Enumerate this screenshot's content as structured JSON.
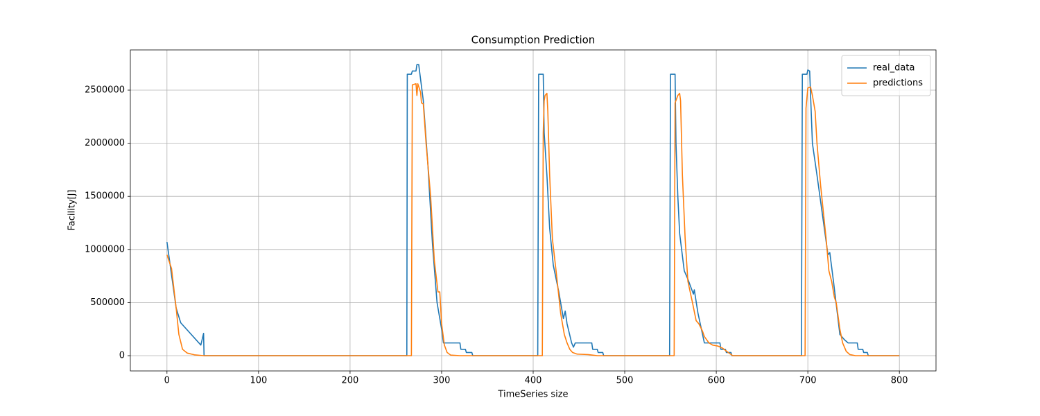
{
  "chart_data": {
    "type": "line",
    "title": "Consumption Prediction",
    "x_label": "TimeSeries size",
    "y_label": "Facility[J]",
    "grid": true,
    "legend": "upper right",
    "xlim": [
      -40,
      840
    ],
    "xticks": [
      0,
      100,
      200,
      300,
      400,
      500,
      600,
      700,
      800
    ],
    "ylim": [
      -143600,
      2878600
    ],
    "yticks": [
      0,
      500000,
      1000000,
      1500000,
      2000000,
      2500000
    ],
    "series": [
      {
        "name": "real_data",
        "color": "#1f77b4",
        "x": [
          0,
          10,
          15,
          37,
          40,
          40.5,
          262,
          262.5,
          267,
          268,
          272,
          273,
          275,
          280,
          285,
          290,
          295,
          300,
          302,
          320,
          321,
          326,
          327,
          333,
          334,
          405,
          406,
          411,
          412,
          415,
          418,
          422,
          428,
          433,
          435,
          437,
          442,
          444,
          446,
          464,
          465,
          470,
          471,
          476,
          477,
          549,
          550,
          555,
          556,
          558,
          560,
          565,
          569,
          575,
          576,
          580,
          585,
          587,
          604,
          605,
          610,
          611,
          616,
          617,
          693,
          694,
          699,
          700,
          702,
          705,
          710,
          718,
          722,
          724,
          728,
          735,
          740,
          744,
          754,
          755,
          760,
          761,
          765,
          766,
          800
        ],
        "values": [
          1070000,
          450000,
          310000,
          100000,
          210000,
          0,
          0,
          2650000,
          2650000,
          2680000,
          2680000,
          2740000,
          2740000,
          2400000,
          1800000,
          1050000,
          500000,
          250000,
          120000,
          120000,
          60000,
          60000,
          30000,
          30000,
          0,
          0,
          2650000,
          2650000,
          2100000,
          1700000,
          1200000,
          850000,
          600000,
          350000,
          420000,
          300000,
          120000,
          80000,
          120000,
          120000,
          60000,
          60000,
          30000,
          30000,
          0,
          0,
          2650000,
          2650000,
          2000000,
          1500000,
          1150000,
          800000,
          720000,
          580000,
          620000,
          400000,
          200000,
          120000,
          120000,
          60000,
          60000,
          30000,
          30000,
          0,
          0,
          2650000,
          2650000,
          2690000,
          2680000,
          2000000,
          1700000,
          1200000,
          950000,
          970000,
          700000,
          200000,
          150000,
          120000,
          120000,
          60000,
          60000,
          30000,
          30000,
          0,
          0
        ]
      },
      {
        "name": "predictions",
        "color": "#ff7f0e",
        "x": [
          0,
          5,
          10,
          13,
          17,
          22,
          30,
          40,
          267,
          268,
          272,
          273,
          274,
          277,
          278,
          280,
          283,
          288,
          292,
          296,
          298,
          300,
          303,
          306,
          310,
          320,
          410,
          411,
          412,
          413,
          415,
          416,
          418,
          421,
          425,
          430,
          434,
          437,
          440,
          443,
          448,
          460,
          470,
          554,
          555,
          558,
          560,
          561,
          563,
          566,
          569,
          574,
          578,
          581,
          585,
          587,
          592,
          596,
          602,
          607,
          613,
          618,
          697,
          698,
          700,
          703,
          705,
          708,
          710,
          714,
          720,
          723,
          726,
          729,
          731,
          735,
          738,
          742,
          746,
          752,
          800
        ],
        "values": [
          950000,
          820000,
          450000,
          200000,
          60000,
          25000,
          8000,
          0,
          0,
          2550000,
          2560000,
          2450000,
          2560000,
          2480000,
          2380000,
          2370000,
          2000000,
          1500000,
          900000,
          600000,
          600000,
          300000,
          100000,
          30000,
          5000,
          0,
          0,
          2100000,
          2400000,
          2450000,
          2470000,
          2300000,
          1700000,
          1100000,
          800000,
          400000,
          200000,
          120000,
          60000,
          30000,
          15000,
          10000,
          0,
          0,
          2380000,
          2450000,
          2470000,
          2400000,
          1700000,
          1100000,
          700000,
          500000,
          330000,
          300000,
          230000,
          180000,
          120000,
          100000,
          90000,
          70000,
          30000,
          0,
          0,
          2330000,
          2520000,
          2530000,
          2450000,
          2300000,
          2000000,
          1600000,
          1100000,
          800000,
          700000,
          550000,
          500000,
          250000,
          120000,
          40000,
          10000,
          0,
          0
        ]
      }
    ]
  }
}
